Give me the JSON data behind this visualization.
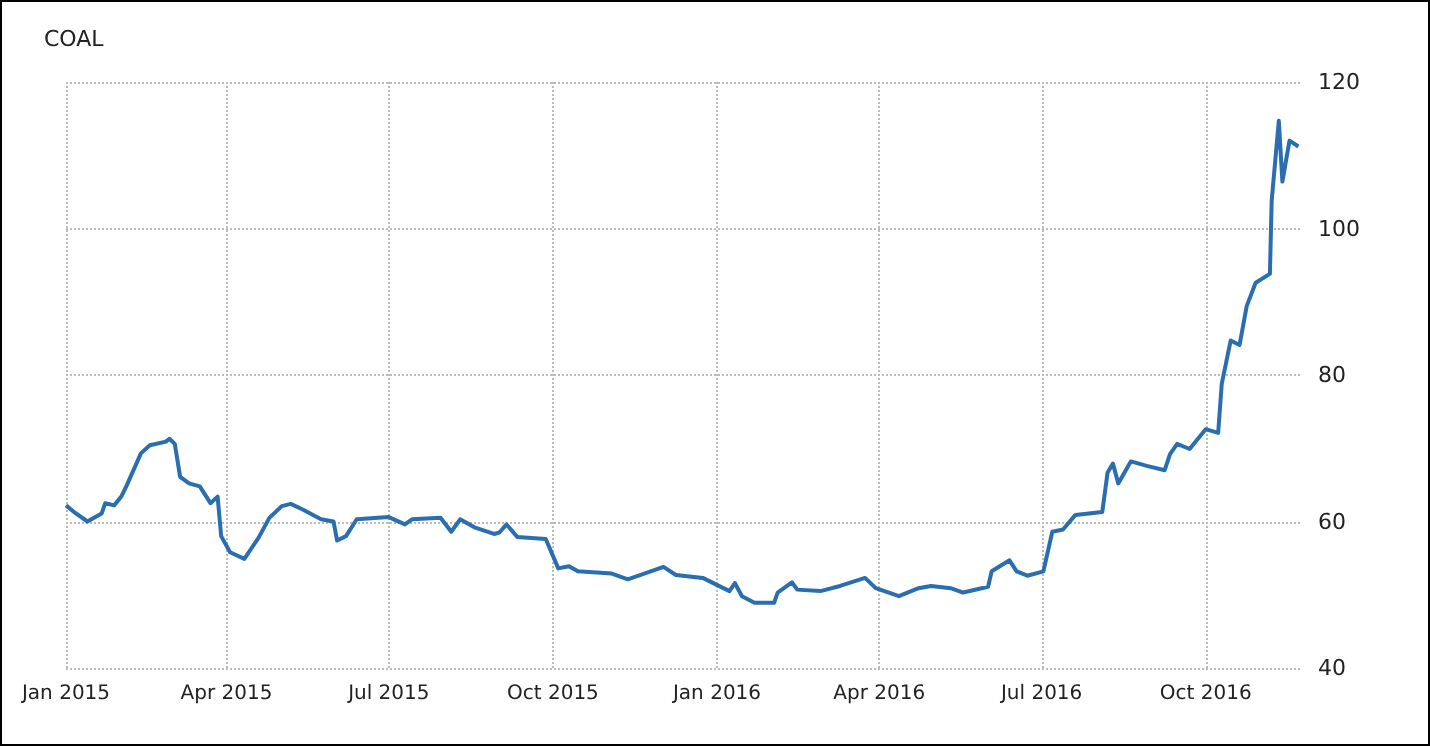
{
  "chart_data": {
    "type": "line",
    "title": "COAL",
    "x": [
      "2015-01-01",
      "2015-01-06",
      "2015-01-13",
      "2015-01-21",
      "2015-01-23",
      "2015-01-28",
      "2015-02-01",
      "2015-02-04",
      "2015-02-12",
      "2015-02-17",
      "2015-02-26",
      "2015-02-28",
      "2015-03-03",
      "2015-03-06",
      "2015-03-11",
      "2015-03-17",
      "2015-03-23",
      "2015-03-27",
      "2015-03-29",
      "2015-04-03",
      "2015-04-11",
      "2015-04-19",
      "2015-04-25",
      "2015-05-02",
      "2015-05-07",
      "2015-05-14",
      "2015-05-24",
      "2015-05-31",
      "2015-06-02",
      "2015-06-07",
      "2015-06-13",
      "2015-07-01",
      "2015-07-10",
      "2015-07-14",
      "2015-07-30",
      "2015-08-05",
      "2015-08-10",
      "2015-08-18",
      "2015-08-29",
      "2015-09-01",
      "2015-09-05",
      "2015-09-11",
      "2015-09-27",
      "2015-10-04",
      "2015-10-10",
      "2015-10-15",
      "2015-11-03",
      "2015-11-12",
      "2015-12-02",
      "2015-12-09",
      "2015-12-24",
      "2016-01-08",
      "2016-01-11",
      "2016-01-15",
      "2016-01-22",
      "2016-02-02",
      "2016-02-04",
      "2016-02-12",
      "2016-02-15",
      "2016-02-28",
      "2016-03-10",
      "2016-03-24",
      "2016-03-30",
      "2016-04-12",
      "2016-04-23",
      "2016-04-30",
      "2016-05-11",
      "2016-05-18",
      "2016-06-01",
      "2016-06-03",
      "2016-06-13",
      "2016-06-17",
      "2016-06-23",
      "2016-07-02",
      "2016-07-07",
      "2016-07-13",
      "2016-07-20",
      "2016-08-04",
      "2016-08-07",
      "2016-08-10",
      "2016-08-13",
      "2016-08-20",
      "2016-08-29",
      "2016-09-08",
      "2016-09-11",
      "2016-09-15",
      "2016-09-22",
      "2016-10-01",
      "2016-10-08",
      "2016-10-10",
      "2016-10-15",
      "2016-10-20",
      "2016-10-24",
      "2016-10-29",
      "2016-11-06",
      "2016-11-07",
      "2016-11-11",
      "2016-11-13",
      "2016-11-17",
      "2016-11-22"
    ],
    "series": [
      {
        "color": "#2a6eb0",
        "values": [
          62.2,
          61.2,
          60,
          61.1,
          62.5,
          62.2,
          63.4,
          64.9,
          69.3,
          70.4,
          70.9,
          71.3,
          70.6,
          66.1,
          65.2,
          64.8,
          62.5,
          63.4,
          58,
          55.8,
          54.9,
          57.8,
          60.5,
          62.1,
          62.4,
          61.6,
          60.3,
          60,
          57.4,
          58,
          60.3,
          60.6,
          59.6,
          60.3,
          60.5,
          58.6,
          60.3,
          59.2,
          58.3,
          58.5,
          59.6,
          57.9,
          57.6,
          53.6,
          53.9,
          53.2,
          52.9,
          52.1,
          53.8,
          52.7,
          52.3,
          50.5,
          51.6,
          49.8,
          48.9,
          48.9,
          50.3,
          51.7,
          50.7,
          50.5,
          51.2,
          52.3,
          50.9,
          49.8,
          50.9,
          51.2,
          50.9,
          50.3,
          51.1,
          53.2,
          54.7,
          53.2,
          52.6,
          53.2,
          58.6,
          58.9,
          60.9,
          61.3,
          66.7,
          67.9,
          65.2,
          68.2,
          67.6,
          67,
          69.2,
          70.6,
          69.9,
          72.6,
          72.1,
          78.8,
          84.7,
          84.1,
          89.4,
          92.6,
          93.8,
          103.8,
          114.7,
          106.4,
          112,
          111.2
        ]
      }
    ],
    "xlim": [
      "2015-01-01",
      "2016-11-24"
    ],
    "xticks": [
      {
        "value": "2015-01-01",
        "label": "Jan 2015"
      },
      {
        "value": "2015-04-01",
        "label": "Apr 2015"
      },
      {
        "value": "2015-07-01",
        "label": "Jul 2015"
      },
      {
        "value": "2015-10-01",
        "label": "Oct 2015"
      },
      {
        "value": "2016-01-01",
        "label": "Jan 2016"
      },
      {
        "value": "2016-04-01",
        "label": "Apr 2016"
      },
      {
        "value": "2016-07-01",
        "label": "Jul 2016"
      },
      {
        "value": "2016-10-01",
        "label": "Oct 2016"
      }
    ],
    "ylim": [
      40,
      120
    ],
    "yticks": [
      40,
      60,
      80,
      100,
      120
    ],
    "grid": true,
    "marker": "none",
    "line_style": "solid"
  }
}
